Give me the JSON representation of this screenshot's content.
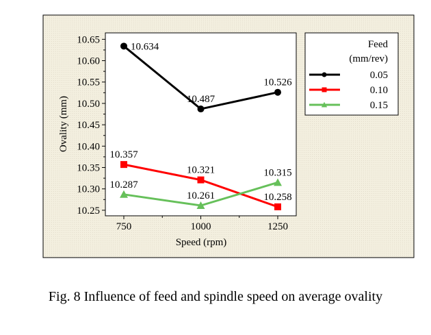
{
  "chart_data": {
    "type": "line",
    "title": "",
    "xlabel": "Speed (rpm)",
    "ylabel": "Ovality (mm)",
    "x": [
      750,
      1000,
      1250
    ],
    "x_tick_labels": [
      "750",
      "1000",
      "1250"
    ],
    "y_tick_labels": [
      "10.25",
      "10.30",
      "10.35",
      "10.40",
      "10.45",
      "10.50",
      "10.55",
      "10.60",
      "10.65"
    ],
    "xlim": [
      690,
      1310
    ],
    "ylim": [
      10.237,
      10.665
    ],
    "grid": false,
    "legend": {
      "title_line1": "Feed",
      "title_line2": "(mm/rev)",
      "placement": "right-outside"
    },
    "series": [
      {
        "name": "0.05",
        "color": "#000000",
        "marker": "circle",
        "values": [
          10.634,
          10.487,
          10.526
        ],
        "labels": [
          "10.634",
          "10.487",
          "10.526"
        ]
      },
      {
        "name": "0.10",
        "color": "#ff0000",
        "marker": "square",
        "values": [
          10.357,
          10.321,
          10.258
        ],
        "labels": [
          "10.357",
          "10.321",
          "10.258"
        ]
      },
      {
        "name": "0.15",
        "color": "#66c05a",
        "marker": "triangle",
        "values": [
          10.287,
          10.261,
          10.315
        ],
        "labels": [
          "10.287",
          "10.261",
          "10.315"
        ]
      }
    ]
  },
  "caption": "Fig. 8  Influence of feed and spindle speed on average ovality"
}
